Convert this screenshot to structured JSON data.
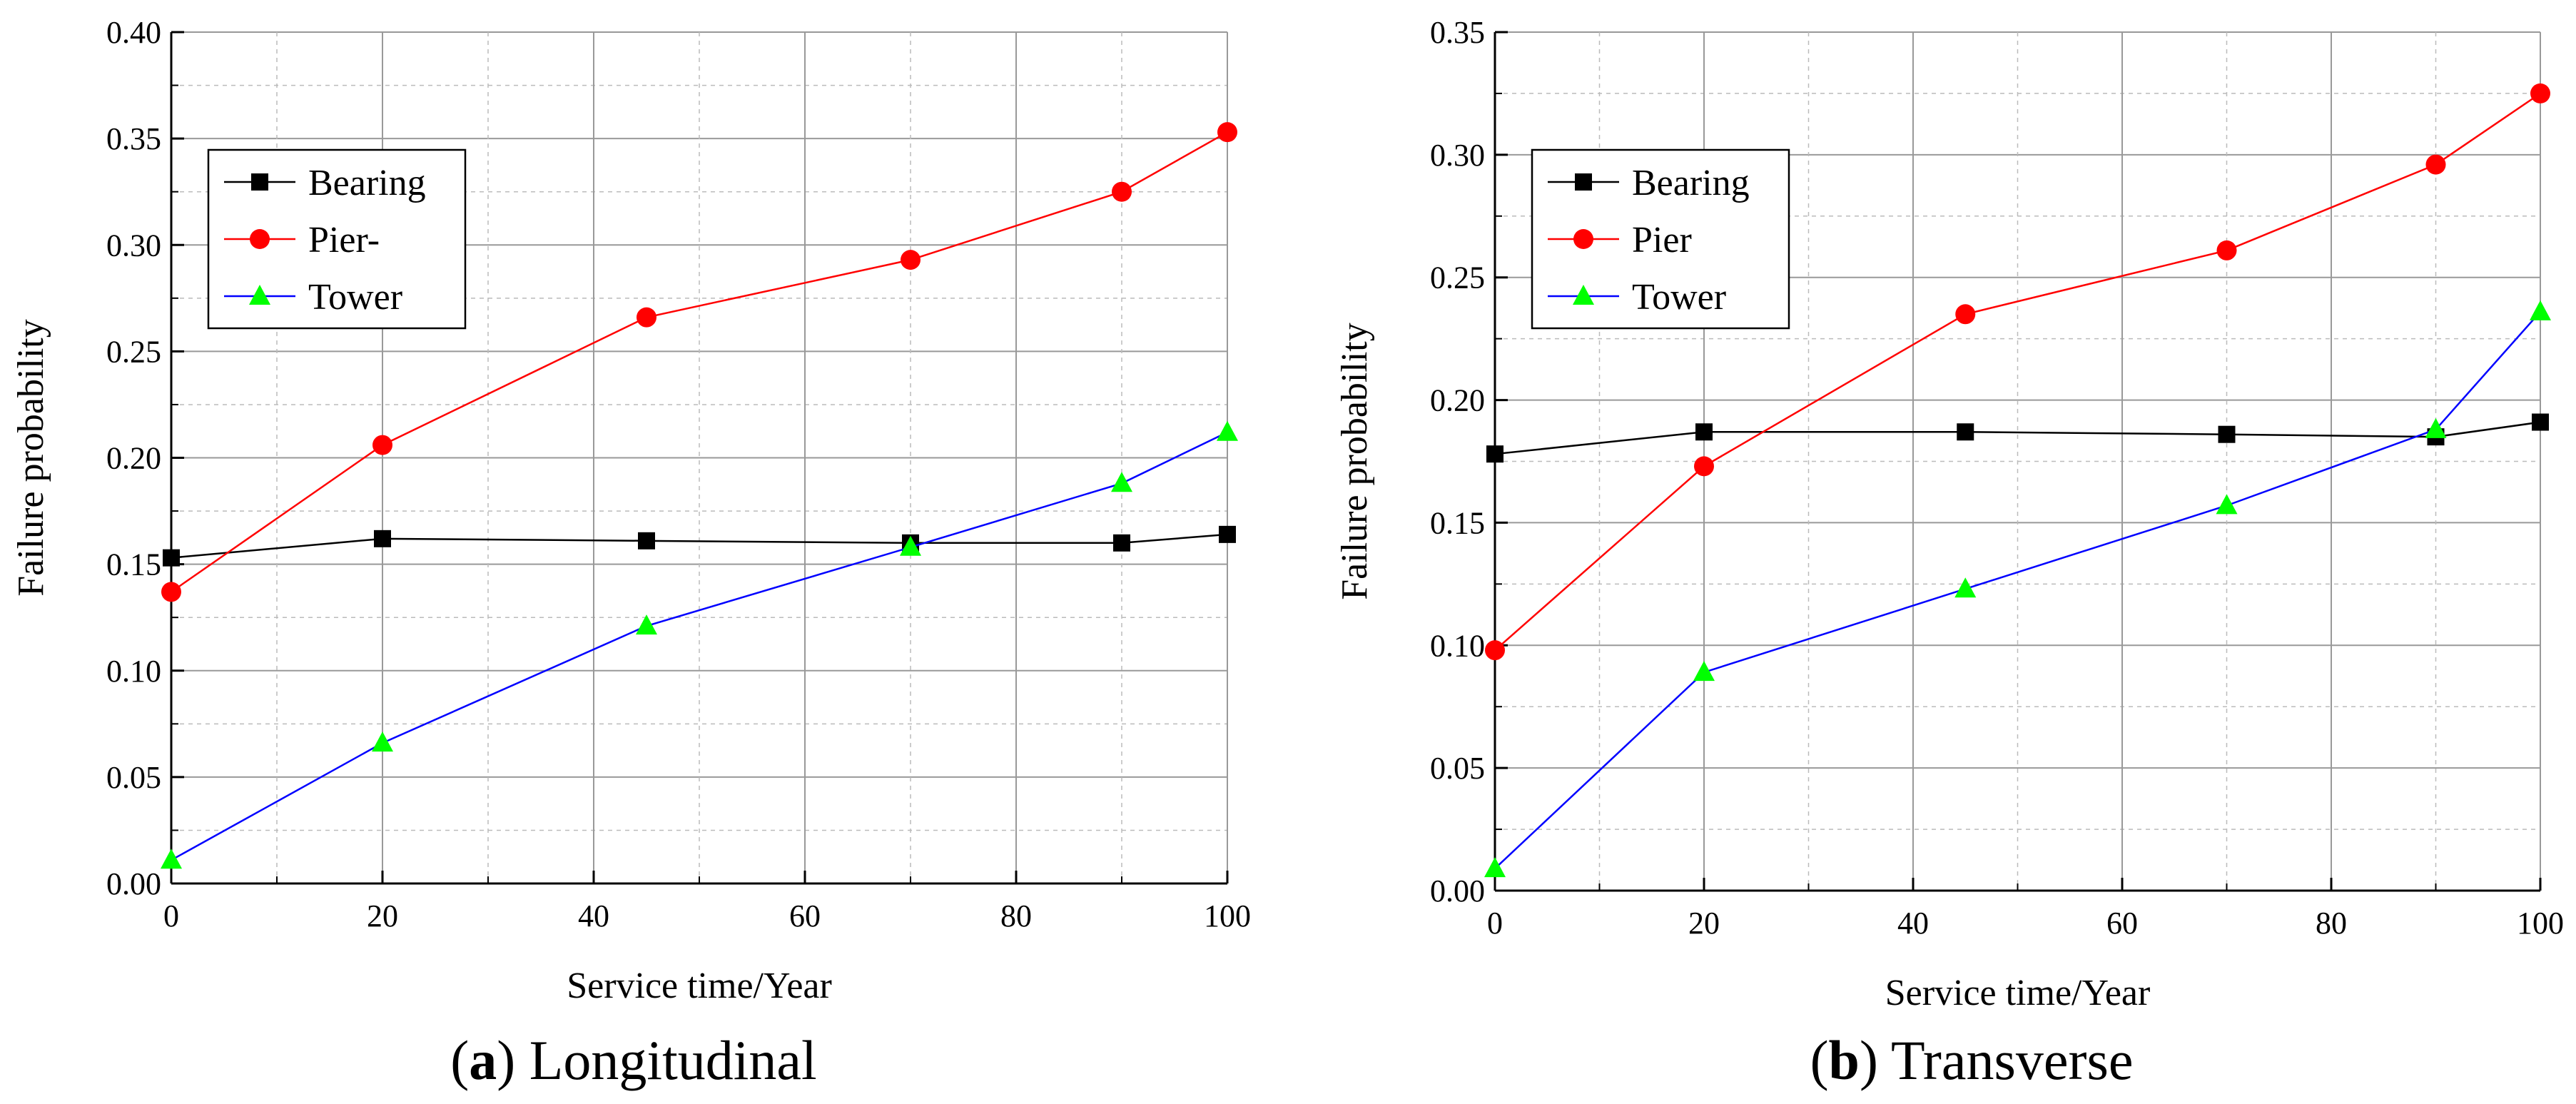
{
  "chart_data": [
    {
      "type": "line",
      "panel": "a",
      "caption": {
        "letter": "a",
        "title": "Longitudinal"
      },
      "xlabel": "Service time/Year",
      "ylabel": "Failure probability",
      "xlim": [
        0,
        100
      ],
      "ylim": [
        0,
        0.4
      ],
      "xticks": [
        "0",
        "20",
        "40",
        "60",
        "80",
        "100"
      ],
      "yticks": [
        "0.00",
        "0.05",
        "0.10",
        "0.15",
        "0.20",
        "0.25",
        "0.30",
        "0.35",
        "0.40"
      ],
      "grid": true,
      "legend_position": "top-left",
      "x": [
        0,
        20,
        45,
        70,
        90,
        100
      ],
      "series": [
        {
          "name": "Bearing",
          "color": "#000000",
          "marker": "square",
          "values": [
            0.153,
            0.162,
            0.161,
            0.16,
            0.16,
            0.164
          ]
        },
        {
          "name": "Pier-",
          "color": "#ff0000",
          "marker": "circle",
          "values": [
            0.137,
            0.206,
            0.266,
            0.293,
            0.325,
            0.353
          ]
        },
        {
          "name": "Tower",
          "color": "#0000ff",
          "marker_color": "#00ff00",
          "marker": "triangle",
          "values": [
            0.011,
            0.066,
            0.121,
            0.158,
            0.188,
            0.212
          ]
        }
      ]
    },
    {
      "type": "line",
      "panel": "b",
      "caption": {
        "letter": "b",
        "title": "Transverse"
      },
      "xlabel": "Service time/Year",
      "ylabel": "Failure probability",
      "xlim": [
        0,
        100
      ],
      "ylim": [
        0,
        0.35
      ],
      "xticks": [
        "0",
        "20",
        "40",
        "60",
        "80",
        "100"
      ],
      "yticks": [
        "0.00",
        "0.05",
        "0.10",
        "0.15",
        "0.20",
        "0.25",
        "0.30",
        "0.35"
      ],
      "grid": true,
      "legend_position": "top-left",
      "x": [
        0,
        20,
        45,
        70,
        90,
        100
      ],
      "series": [
        {
          "name": "Bearing",
          "color": "#000000",
          "marker": "square",
          "values": [
            0.178,
            0.187,
            0.187,
            0.186,
            0.185,
            0.191
          ]
        },
        {
          "name": "Pier",
          "color": "#ff0000",
          "marker": "circle",
          "values": [
            0.098,
            0.173,
            0.235,
            0.261,
            0.296,
            0.325
          ]
        },
        {
          "name": "Tower",
          "color": "#0000ff",
          "marker_color": "#00ff00",
          "marker": "triangle",
          "values": [
            0.009,
            0.089,
            0.123,
            0.157,
            0.188,
            0.236
          ]
        }
      ]
    }
  ]
}
